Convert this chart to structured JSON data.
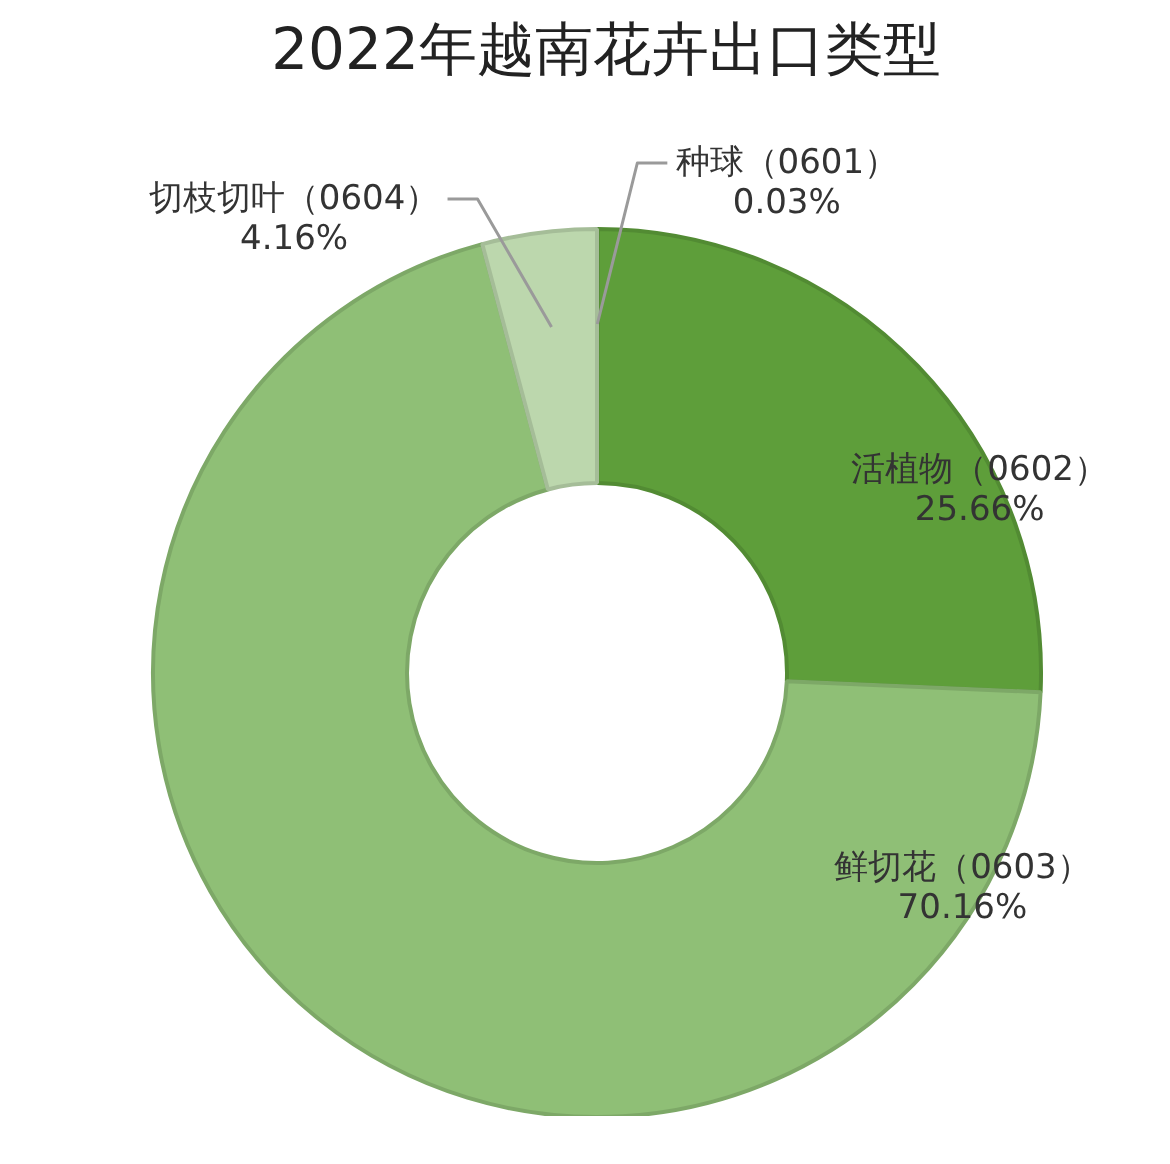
{
  "chart_data": {
    "type": "donut",
    "title": "2022年越南花卉出口类型",
    "categories": [
      "种球（0601）",
      "活植物（0602）",
      "鲜切花（0603）",
      "切枝切叶（0604）"
    ],
    "values": [
      0.03,
      25.66,
      70.16,
      4.16
    ],
    "colors": [
      "#a6b89a",
      "#5e9e3a",
      "#8fbf76",
      "#bcd7ad"
    ],
    "value_labels": [
      "0.03%",
      "25.66%",
      "70.16%",
      "4.16%"
    ]
  }
}
